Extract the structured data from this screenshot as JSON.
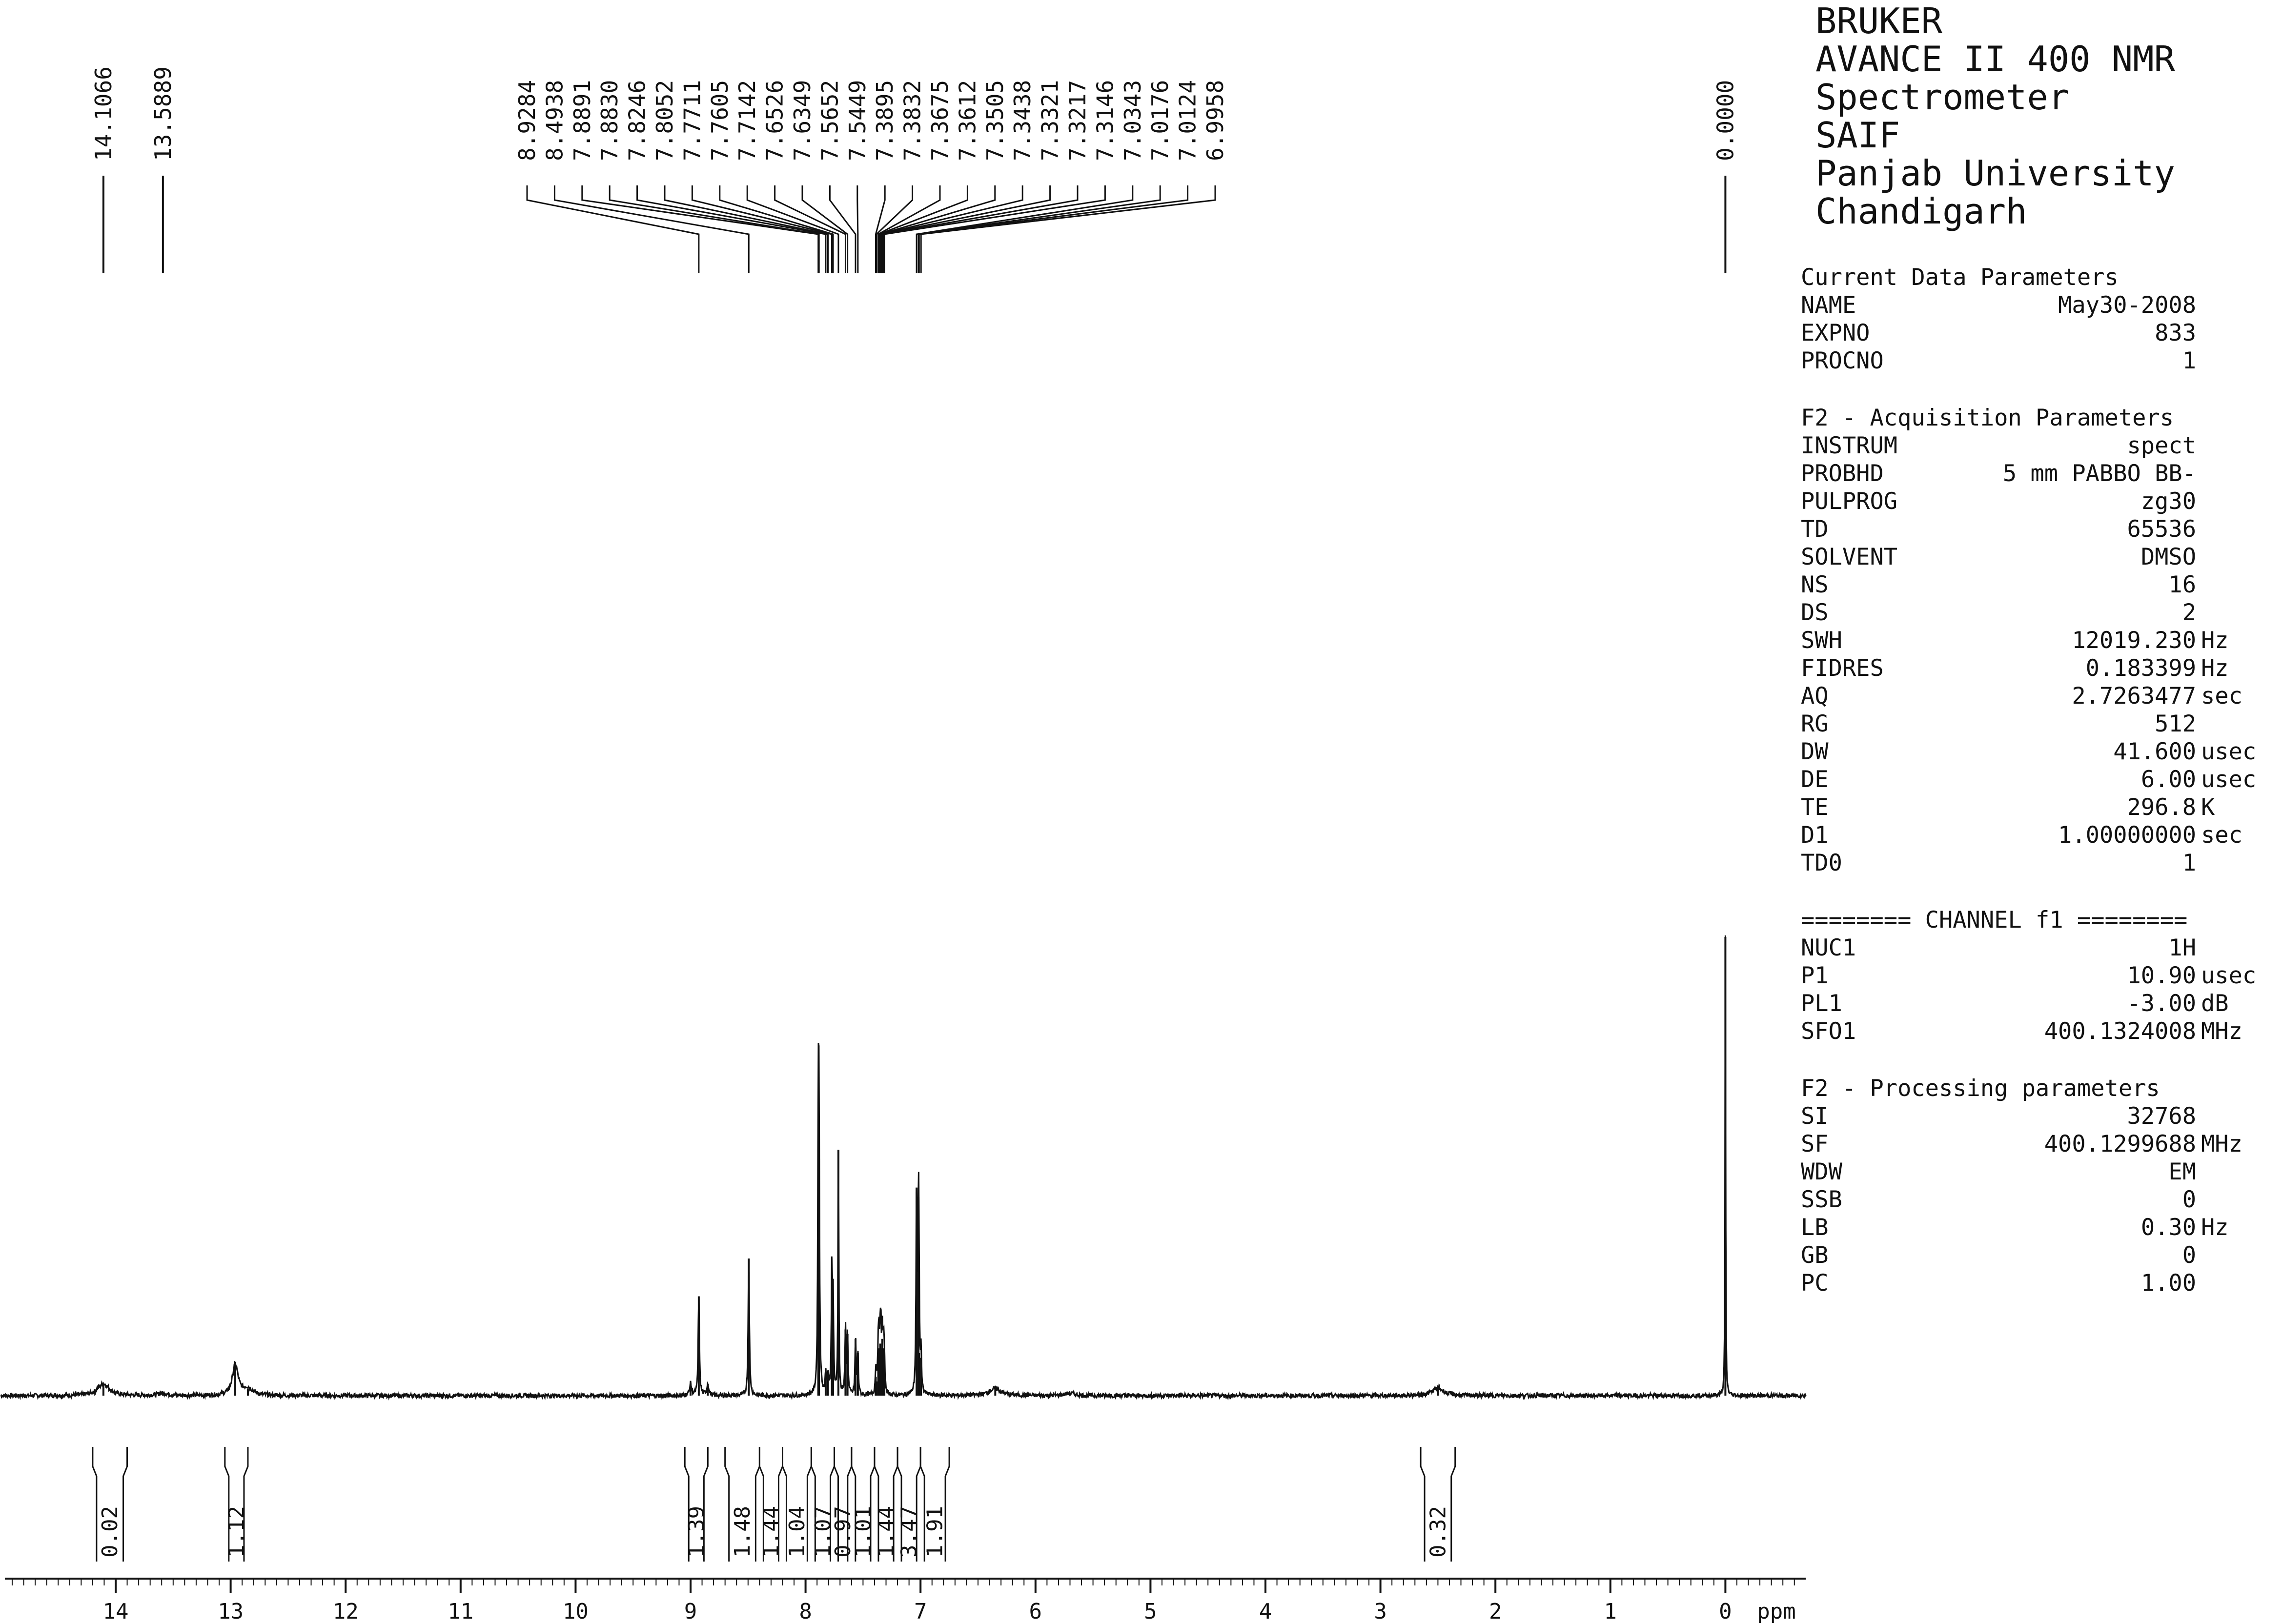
{
  "spectrometer_info": [
    "BRUKER",
    "AVANCE II 400 NMR",
    "Spectrometer",
    "SAIF",
    "Panjab University",
    "Chandigarh"
  ],
  "current_data_parameters": {
    "heading": "Current Data Parameters",
    "rows": [
      {
        "key": "NAME",
        "value": "May30-2008",
        "unit": ""
      },
      {
        "key": "EXPNO",
        "value": "833",
        "unit": ""
      },
      {
        "key": "PROCNO",
        "value": "1",
        "unit": ""
      }
    ]
  },
  "acquisition_parameters": {
    "heading": "F2 - Acquisition Parameters",
    "rows": [
      {
        "key": "INSTRUM",
        "value": "spect",
        "unit": ""
      },
      {
        "key": "PROBHD",
        "value": "5 mm PABBO BB-",
        "unit": ""
      },
      {
        "key": "PULPROG",
        "value": "zg30",
        "unit": ""
      },
      {
        "key": "TD",
        "value": "65536",
        "unit": ""
      },
      {
        "key": "SOLVENT",
        "value": "DMSO",
        "unit": ""
      },
      {
        "key": "NS",
        "value": "16",
        "unit": ""
      },
      {
        "key": "DS",
        "value": "2",
        "unit": ""
      },
      {
        "key": "SWH",
        "value": "12019.230",
        "unit": "Hz"
      },
      {
        "key": "FIDRES",
        "value": "0.183399",
        "unit": "Hz"
      },
      {
        "key": "AQ",
        "value": "2.7263477",
        "unit": "sec"
      },
      {
        "key": "RG",
        "value": "512",
        "unit": ""
      },
      {
        "key": "DW",
        "value": "41.600",
        "unit": "usec"
      },
      {
        "key": "DE",
        "value": "6.00",
        "unit": "usec"
      },
      {
        "key": "TE",
        "value": "296.8",
        "unit": "K"
      },
      {
        "key": "D1",
        "value": "1.00000000",
        "unit": "sec"
      },
      {
        "key": "TD0",
        "value": "1",
        "unit": ""
      }
    ]
  },
  "channel_parameters": {
    "heading": "======== CHANNEL f1 ========",
    "rows": [
      {
        "key": "NUC1",
        "value": "1H",
        "unit": ""
      },
      {
        "key": "P1",
        "value": "10.90",
        "unit": "usec"
      },
      {
        "key": "PL1",
        "value": "-3.00",
        "unit": "dB"
      },
      {
        "key": "SFO1",
        "value": "400.1324008",
        "unit": "MHz"
      }
    ]
  },
  "processing_parameters": {
    "heading": "F2 - Processing parameters",
    "rows": [
      {
        "key": "SI",
        "value": "32768",
        "unit": ""
      },
      {
        "key": "SF",
        "value": "400.1299688",
        "unit": "MHz"
      },
      {
        "key": "WDW",
        "value": "EM",
        "unit": ""
      },
      {
        "key": "SSB",
        "value": "0",
        "unit": ""
      },
      {
        "key": "LB",
        "value": "0.30",
        "unit": "Hz"
      },
      {
        "key": "GB",
        "value": "0",
        "unit": ""
      },
      {
        "key": "PC",
        "value": "1.00",
        "unit": ""
      }
    ]
  },
  "chart_data": {
    "type": "line",
    "title": "",
    "xlabel": "ppm",
    "ylabel": "",
    "x_reversed": true,
    "xlim": [
      15.0,
      -0.8
    ],
    "ylim": [
      0,
      100
    ],
    "grid": false,
    "x_ticks": [
      14,
      13,
      12,
      11,
      10,
      9,
      8,
      7,
      6,
      5,
      4,
      3,
      2,
      1,
      0
    ],
    "x_tick_labels": [
      "14",
      "13",
      "12",
      "11",
      "10",
      "9",
      "8",
      "7",
      "6",
      "5",
      "4",
      "3",
      "2",
      "1",
      "0"
    ],
    "baseline": 3,
    "peaks": [
      {
        "ppm": 14.1066,
        "height": 2.5,
        "width": 0.06
      },
      {
        "ppm": 13.5889,
        "height": 0.5,
        "width": 0.05
      },
      {
        "ppm": 12.96,
        "height": 6.5,
        "width": 0.03
      },
      {
        "ppm": 12.85,
        "height": 1.5,
        "width": 0.05
      },
      {
        "ppm": 8.9284,
        "height": 21,
        "width": 0.006
      },
      {
        "ppm": 8.85,
        "height": 2.5,
        "width": 0.01
      },
      {
        "ppm": 9.0,
        "height": 2.5,
        "width": 0.01
      },
      {
        "ppm": 8.4938,
        "height": 29,
        "width": 0.006
      },
      {
        "ppm": 7.8891,
        "height": 52,
        "width": 0.005
      },
      {
        "ppm": 7.883,
        "height": 50,
        "width": 0.005
      },
      {
        "ppm": 7.8246,
        "height": 4,
        "width": 0.006
      },
      {
        "ppm": 7.8052,
        "height": 4,
        "width": 0.006
      },
      {
        "ppm": 7.7711,
        "height": 26,
        "width": 0.005
      },
      {
        "ppm": 7.7605,
        "height": 20,
        "width": 0.005
      },
      {
        "ppm": 7.7142,
        "height": 52,
        "width": 0.004
      },
      {
        "ppm": 7.6526,
        "height": 14,
        "width": 0.005
      },
      {
        "ppm": 7.6349,
        "height": 13,
        "width": 0.005
      },
      {
        "ppm": 7.5652,
        "height": 12,
        "width": 0.005
      },
      {
        "ppm": 7.5449,
        "height": 9,
        "width": 0.005
      },
      {
        "ppm": 7.3895,
        "height": 4,
        "width": 0.005
      },
      {
        "ppm": 7.3832,
        "height": 3,
        "width": 0.005
      },
      {
        "ppm": 7.3675,
        "height": 9,
        "width": 0.005
      },
      {
        "ppm": 7.3612,
        "height": 10,
        "width": 0.005
      },
      {
        "ppm": 7.3505,
        "height": 11,
        "width": 0.005
      },
      {
        "ppm": 7.3438,
        "height": 10,
        "width": 0.005
      },
      {
        "ppm": 7.3321,
        "height": 12,
        "width": 0.005
      },
      {
        "ppm": 7.3217,
        "height": 10,
        "width": 0.005
      },
      {
        "ppm": 7.3146,
        "height": 6,
        "width": 0.005
      },
      {
        "ppm": 7.0343,
        "height": 44,
        "width": 0.005
      },
      {
        "ppm": 7.0176,
        "height": 42,
        "width": 0.005
      },
      {
        "ppm": 7.0124,
        "height": 9,
        "width": 0.005
      },
      {
        "ppm": 6.9958,
        "height": 8,
        "width": 0.005
      },
      {
        "ppm": 6.35,
        "height": 1.5,
        "width": 0.06
      },
      {
        "ppm": 5.7,
        "height": 0.5,
        "width": 0.05
      },
      {
        "ppm": 2.5,
        "height": 1.6,
        "width": 0.06
      },
      {
        "ppm": 0.0,
        "height": 97,
        "width": 0.003
      }
    ],
    "peak_labels": [
      {
        "ppm": 14.1066,
        "label": "14.1066"
      },
      {
        "ppm": 13.5889,
        "label": "13.5889"
      },
      {
        "ppm": 8.9284,
        "label": "8.9284"
      },
      {
        "ppm": 8.4938,
        "label": "8.4938"
      },
      {
        "ppm": 7.8891,
        "label": "7.8891"
      },
      {
        "ppm": 7.883,
        "label": "7.8830"
      },
      {
        "ppm": 7.8246,
        "label": "7.8246"
      },
      {
        "ppm": 7.8052,
        "label": "7.8052"
      },
      {
        "ppm": 7.7711,
        "label": "7.7711"
      },
      {
        "ppm": 7.7605,
        "label": "7.7605"
      },
      {
        "ppm": 7.7142,
        "label": "7.7142"
      },
      {
        "ppm": 7.6526,
        "label": "7.6526"
      },
      {
        "ppm": 7.6349,
        "label": "7.6349"
      },
      {
        "ppm": 7.5652,
        "label": "7.5652"
      },
      {
        "ppm": 7.5449,
        "label": "7.5449"
      },
      {
        "ppm": 7.3895,
        "label": "7.3895"
      },
      {
        "ppm": 7.3832,
        "label": "7.3832"
      },
      {
        "ppm": 7.3675,
        "label": "7.3675"
      },
      {
        "ppm": 7.3612,
        "label": "7.3612"
      },
      {
        "ppm": 7.3505,
        "label": "7.3505"
      },
      {
        "ppm": 7.3438,
        "label": "7.3438"
      },
      {
        "ppm": 7.3321,
        "label": "7.3321"
      },
      {
        "ppm": 7.3217,
        "label": "7.3217"
      },
      {
        "ppm": 7.3146,
        "label": "7.3146"
      },
      {
        "ppm": 7.0343,
        "label": "7.0343"
      },
      {
        "ppm": 7.0176,
        "label": "7.0176"
      },
      {
        "ppm": 7.0124,
        "label": "7.0124"
      },
      {
        "ppm": 6.9958,
        "label": "6.9958"
      },
      {
        "ppm": 0.0,
        "label": "0.0000"
      }
    ],
    "integrals": [
      {
        "from": 14.2,
        "to": 13.9,
        "value": "0.02"
      },
      {
        "from": 13.05,
        "to": 12.85,
        "value": "1.12"
      },
      {
        "from": 9.05,
        "to": 8.85,
        "value": "1.39"
      },
      {
        "from": 8.7,
        "to": 8.4,
        "value": "1.48"
      },
      {
        "from": 8.4,
        "to": 8.2,
        "value": "1.44"
      },
      {
        "from": 8.2,
        "to": 7.95,
        "value": "1.04"
      },
      {
        "from": 7.95,
        "to": 7.75,
        "value": "1.07"
      },
      {
        "from": 7.75,
        "to": 7.6,
        "value": "0.97"
      },
      {
        "from": 7.6,
        "to": 7.4,
        "value": "1.01"
      },
      {
        "from": 7.4,
        "to": 7.2,
        "value": "1.44"
      },
      {
        "from": 7.2,
        "to": 7.0,
        "value": "3.47"
      },
      {
        "from": 7.0,
        "to": 6.75,
        "value": "1.91"
      },
      {
        "from": 2.65,
        "to": 2.35,
        "value": "0.32"
      }
    ]
  }
}
